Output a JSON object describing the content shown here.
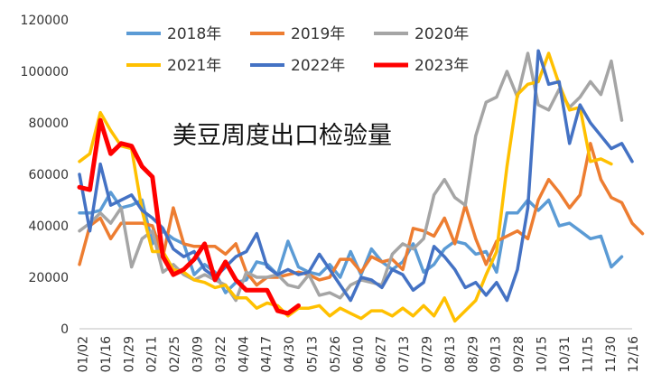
{
  "chart_data": {
    "type": "line",
    "title": "美豆周度出口检验量",
    "xlabel": "",
    "ylabel": "",
    "ylim": [
      0,
      120000
    ],
    "yticks": [
      0,
      20000,
      40000,
      60000,
      80000,
      100000,
      120000
    ],
    "grid": false,
    "legend": "top",
    "x_ticks": [
      "01/02",
      "01/16",
      "01/29",
      "02/11",
      "02/25",
      "03/09",
      "03/22",
      "04/04",
      "04/17",
      "04/30",
      "05/13",
      "05/26",
      "06/10",
      "06/27",
      "07/13",
      "07/29",
      "08/13",
      "08/29",
      "09/13",
      "09/28",
      "10/15",
      "10/31",
      "11/15",
      "11/30",
      "12/16"
    ],
    "series": [
      {
        "name": "2018年",
        "color": "#5B9BD5",
        "width": 3.5,
        "values": [
          45000,
          45000,
          46000,
          53000,
          47000,
          48000,
          50000,
          33000,
          38000,
          35000,
          33000,
          21000,
          25000,
          22000,
          14000,
          18000,
          19000,
          26000,
          25000,
          21000,
          34000,
          24000,
          22000,
          21000,
          25000,
          20000,
          30000,
          21000,
          31000,
          26000,
          23000,
          26000,
          33000,
          22000,
          25000,
          31000,
          34000,
          33000,
          29000,
          30000,
          22000,
          45000,
          45000,
          50000,
          46000,
          50000,
          40000,
          41000,
          38000,
          35000,
          36000,
          24000,
          28000
        ]
      },
      {
        "name": "2019年",
        "color": "#ED7D31",
        "width": 3.5,
        "values": [
          25000,
          40000,
          43000,
          35000,
          41000,
          41000,
          41000,
          40000,
          28000,
          47000,
          33000,
          32000,
          32000,
          32000,
          29000,
          33000,
          22000,
          17000,
          20000,
          20000,
          21000,
          22000,
          21000,
          19000,
          20000,
          27000,
          27000,
          22000,
          28000,
          26000,
          27000,
          23000,
          39000,
          38000,
          36000,
          43000,
          33000,
          48000,
          35000,
          25000,
          34000,
          36000,
          38000,
          35000,
          50000,
          58000,
          53000,
          47000,
          52000,
          72000,
          58000,
          51000,
          49000,
          41000,
          37000
        ]
      },
      {
        "name": "2020年",
        "color": "#A5A5A5",
        "width": 3.5,
        "values": [
          38000,
          41000,
          45000,
          41000,
          47000,
          24000,
          35000,
          38000,
          22000,
          25000,
          21000,
          19000,
          21000,
          19000,
          17000,
          11000,
          22000,
          20000,
          20000,
          21000,
          17000,
          16000,
          21000,
          13000,
          14000,
          12000,
          17000,
          19000,
          18000,
          17000,
          29000,
          33000,
          31000,
          35000,
          52000,
          58000,
          51000,
          48000,
          75000,
          88000,
          90000,
          100000,
          90000,
          107000,
          87000,
          85000,
          93000,
          86000,
          90000,
          96000,
          91000,
          104000,
          81000
        ]
      },
      {
        "name": "2021年",
        "color": "#FFC000",
        "width": 3.5,
        "values": [
          65000,
          68000,
          84000,
          77000,
          71000,
          70000,
          46000,
          30000,
          30000,
          23000,
          22000,
          19000,
          18000,
          16000,
          17000,
          12000,
          12000,
          8000,
          10000,
          9000,
          5000,
          8000,
          8000,
          9000,
          5000,
          8000,
          6000,
          4000,
          7000,
          7000,
          5000,
          8000,
          5000,
          9000,
          5000,
          12000,
          3000,
          7000,
          11000,
          21000,
          30000,
          63000,
          91000,
          95000,
          96000,
          107000,
          95000,
          85000,
          86000,
          65000,
          66000,
          64000
        ]
      },
      {
        "name": "2022年",
        "color": "#4472C4",
        "width": 3.5,
        "values": [
          60000,
          38000,
          64000,
          48000,
          50000,
          52000,
          46000,
          43000,
          39000,
          31000,
          28000,
          30000,
          23000,
          20000,
          24000,
          28000,
          30000,
          37000,
          24000,
          21000,
          23000,
          21000,
          22000,
          29000,
          23000,
          17000,
          11000,
          20000,
          19000,
          16000,
          23000,
          21000,
          15000,
          18000,
          32000,
          28000,
          23000,
          16000,
          18000,
          13000,
          18000,
          11000,
          23000,
          47000,
          108000,
          95000,
          96000,
          72000,
          87000,
          80000,
          75000,
          70000,
          72000,
          65000
        ]
      },
      {
        "name": "2023年",
        "color": "#FF0000",
        "width": 5,
        "values": [
          55000,
          54000,
          81000,
          68000,
          72000,
          71000,
          63000,
          59000,
          28000,
          21000,
          23000,
          27000,
          33000,
          19000,
          26000,
          19000,
          15000,
          15000,
          15000,
          7000,
          6000,
          9000
        ]
      }
    ]
  }
}
